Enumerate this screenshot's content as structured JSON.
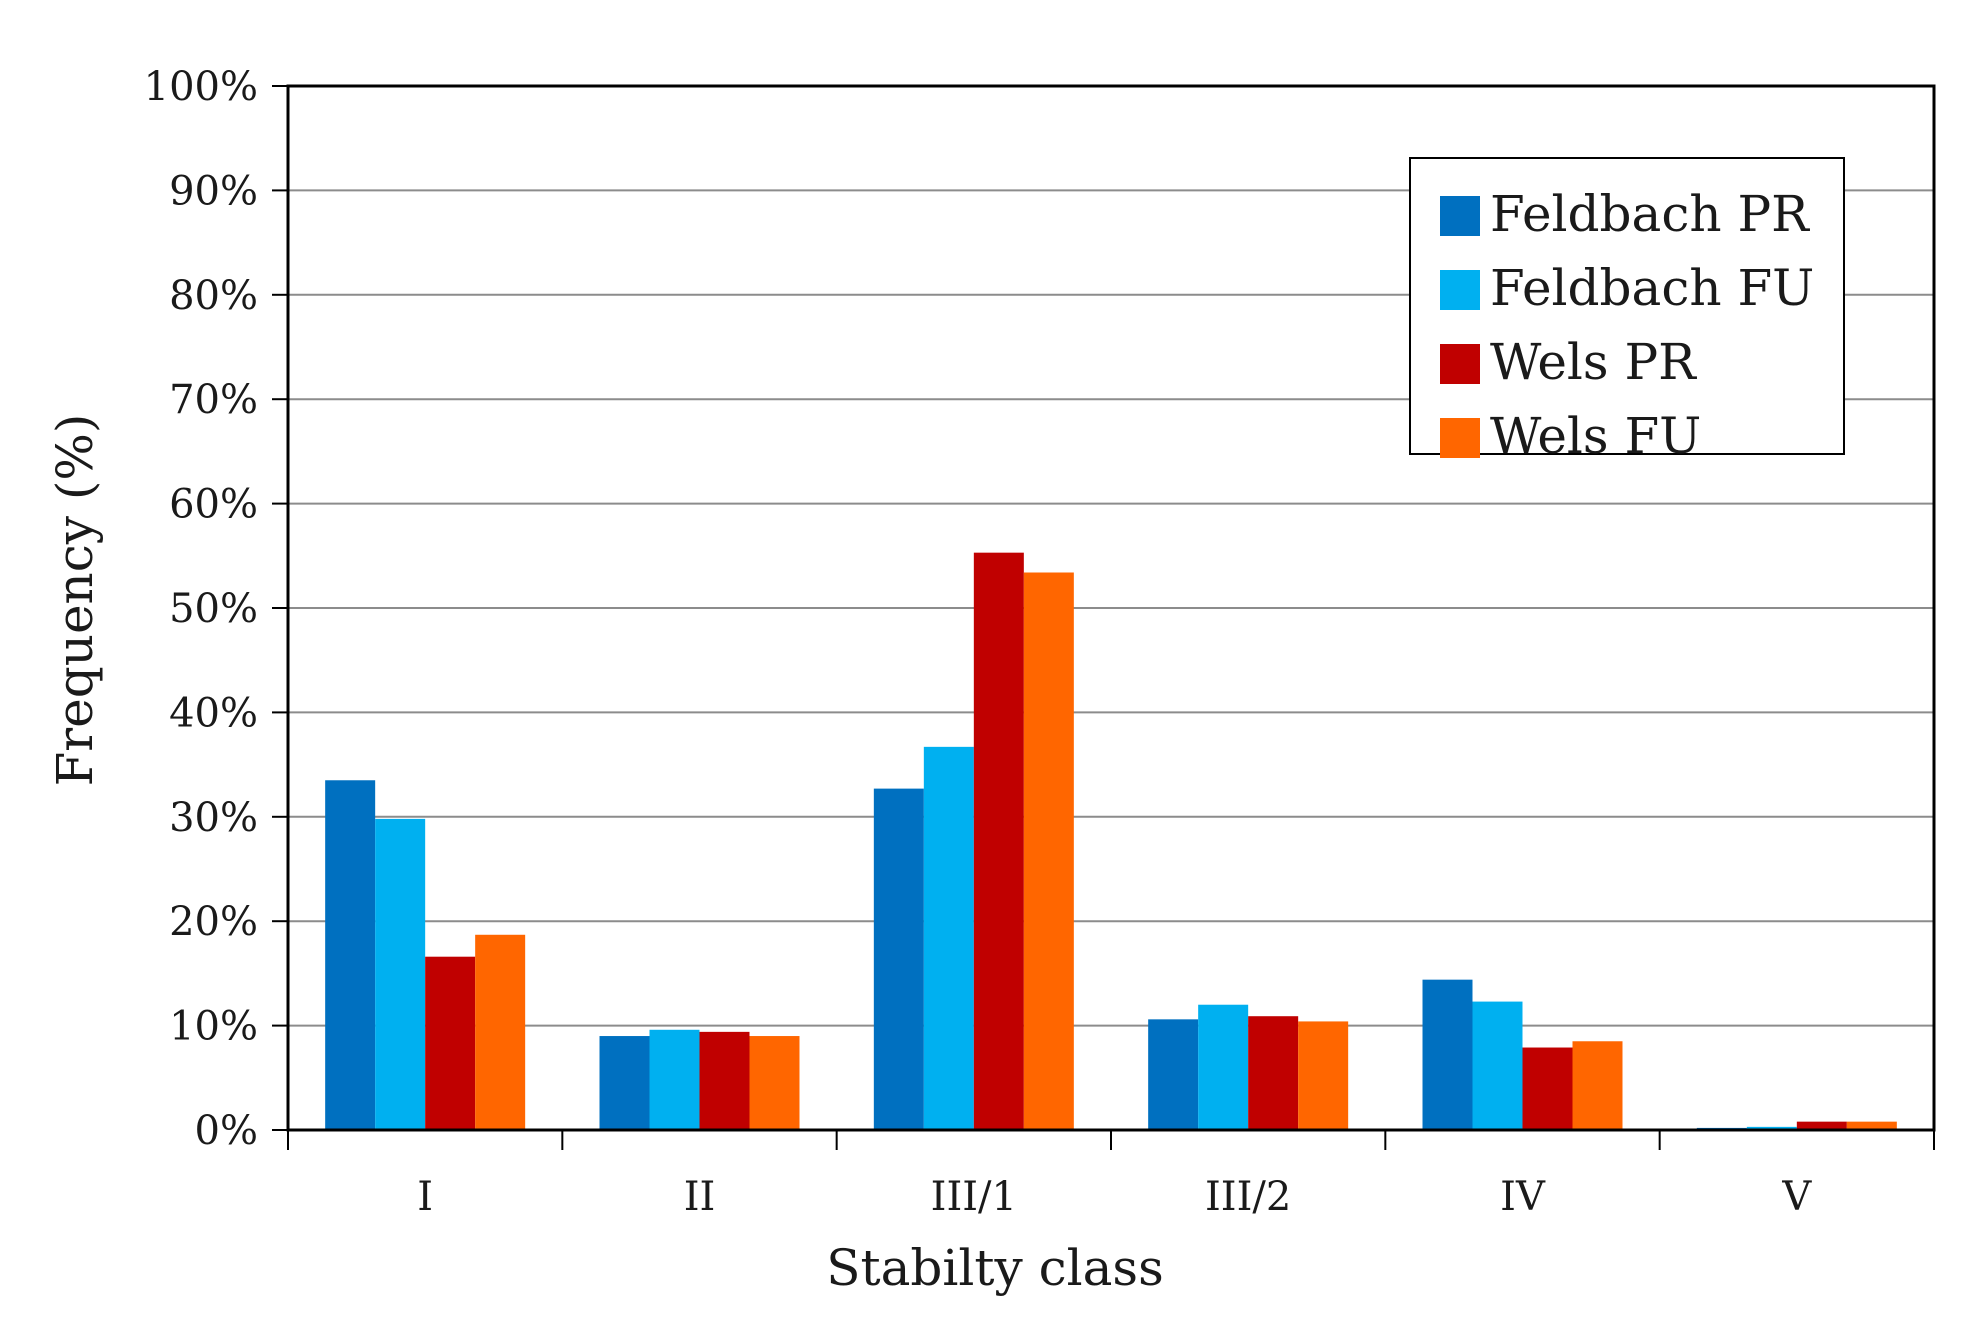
{
  "chart_data": {
    "type": "bar",
    "title": "",
    "xlabel": "Stabilty class",
    "ylabel": "Frequency (%)",
    "ylim": [
      0,
      100
    ],
    "yticks": [
      0,
      10,
      20,
      30,
      40,
      50,
      60,
      70,
      80,
      90,
      100
    ],
    "ytick_labels": [
      "0%",
      "10%",
      "20%",
      "30%",
      "40%",
      "50%",
      "60%",
      "70%",
      "80%",
      "90%",
      "100%"
    ],
    "grid": true,
    "legend_position": "top-right",
    "categories": [
      "I",
      "II",
      "III/1",
      "III/2",
      "IV",
      "V"
    ],
    "series": [
      {
        "name": "Feldbach PR",
        "color": "#0070C0",
        "values": [
          33.5,
          9.0,
          32.7,
          10.6,
          14.4,
          0.2
        ]
      },
      {
        "name": "Feldbach FU",
        "color": "#00B0F0",
        "values": [
          29.8,
          9.6,
          36.7,
          12.0,
          12.3,
          0.3
        ]
      },
      {
        "name": "Wels PR",
        "color": "#C00000",
        "values": [
          16.6,
          9.4,
          55.3,
          10.9,
          7.9,
          0.8
        ]
      },
      {
        "name": "Wels FU",
        "color": "#FF6600",
        "values": [
          18.7,
          9.0,
          53.4,
          10.4,
          8.5,
          0.8
        ]
      }
    ]
  }
}
